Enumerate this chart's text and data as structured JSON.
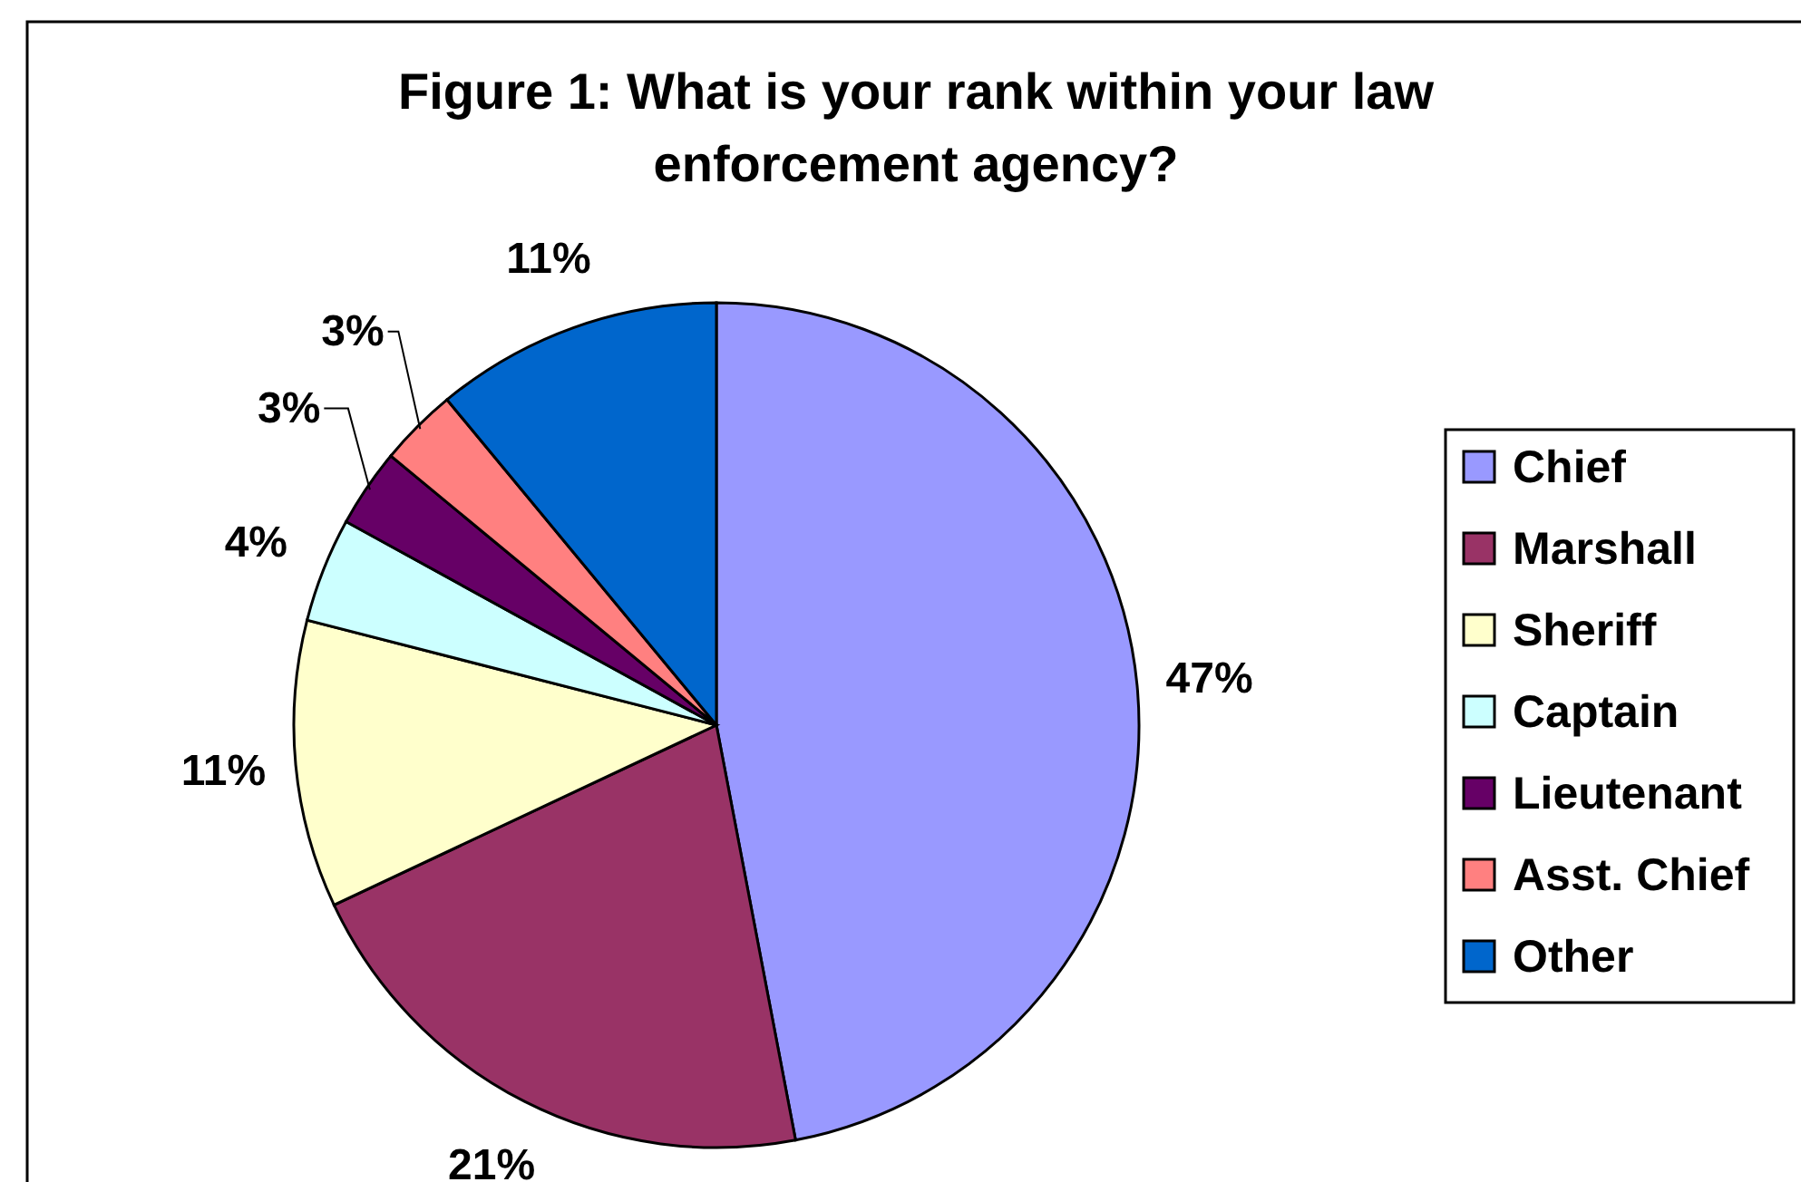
{
  "chart_data": {
    "type": "pie",
    "title": "Figure 1: What is your rank within your law enforcement agency?",
    "categories": [
      "Chief",
      "Marshall",
      "Sheriff",
      "Captain",
      "Lieutenant",
      "Asst. Chief",
      "Other"
    ],
    "values": [
      47,
      21,
      11,
      4,
      3,
      3,
      11
    ],
    "colors": [
      "#9999ff",
      "#993366",
      "#ffffcc",
      "#ccffff",
      "#660066",
      "#ff8080",
      "#0066cc"
    ],
    "value_labels": [
      "47%",
      "21%",
      "11%",
      "4%",
      "3%",
      "3%",
      "11%"
    ],
    "legend": "right"
  }
}
